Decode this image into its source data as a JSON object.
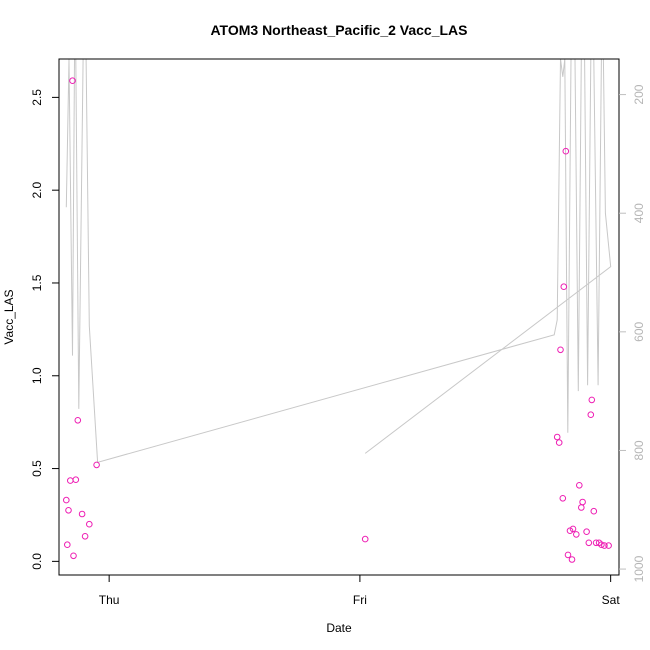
{
  "chart_data": {
    "type": "scatter",
    "title": "ATOM3 Northeast_Pacific_2 Vacc_LAS",
    "xlabel": "Date",
    "ylabel": "Vacc_LAS",
    "x_ticks": [
      {
        "label": "Thu",
        "value": 0
      },
      {
        "label": "Fri",
        "value": 1
      },
      {
        "label": "Sat",
        "value": 2
      }
    ],
    "xlim": [
      -0.2,
      2.0333
    ],
    "ylim": [
      -0.0735,
      2.7068
    ],
    "y_ticks": [
      0.0,
      0.5,
      1.0,
      1.5,
      2.0,
      2.5
    ],
    "y_tick_labels": [
      "0.0",
      "0.5",
      "1.0",
      "1.5",
      "2.0",
      "2.5"
    ],
    "secondary_axis": {
      "ylim_reversed": [
        1010,
        140
      ],
      "ticks": [
        200,
        400,
        600,
        800,
        1000
      ],
      "tick_labels": [
        "200",
        "400",
        "600",
        "800",
        "1000"
      ],
      "color": "#bebebe"
    },
    "series": [
      {
        "kind": "points",
        "color": "#ee1fb4",
        "points": [
          {
            "x": -0.171,
            "y": 0.33
          },
          {
            "x": -0.167,
            "y": 0.09
          },
          {
            "x": -0.162,
            "y": 0.275
          },
          {
            "x": -0.155,
            "y": 0.435
          },
          {
            "x": -0.146,
            "y": 2.59
          },
          {
            "x": -0.142,
            "y": 0.03
          },
          {
            "x": -0.133,
            "y": 0.44
          },
          {
            "x": -0.125,
            "y": 0.76
          },
          {
            "x": -0.108,
            "y": 0.255
          },
          {
            "x": -0.096,
            "y": 0.135
          },
          {
            "x": -0.079,
            "y": 0.2
          },
          {
            "x": -0.05,
            "y": 0.52
          },
          {
            "x": 1.021,
            "y": 0.12
          },
          {
            "x": 1.787,
            "y": 0.67
          },
          {
            "x": 1.795,
            "y": 0.64
          },
          {
            "x": 1.8,
            "y": 1.14
          },
          {
            "x": 1.809,
            "y": 0.34
          },
          {
            "x": 1.813,
            "y": 1.48
          },
          {
            "x": 1.821,
            "y": 2.21
          },
          {
            "x": 1.83,
            "y": 0.035
          },
          {
            "x": 1.838,
            "y": 0.165
          },
          {
            "x": 1.846,
            "y": 0.01
          },
          {
            "x": 1.85,
            "y": 0.175
          },
          {
            "x": 1.863,
            "y": 0.145
          },
          {
            "x": 1.875,
            "y": 0.41
          },
          {
            "x": 1.883,
            "y": 0.29
          },
          {
            "x": 1.888,
            "y": 0.32
          },
          {
            "x": 1.904,
            "y": 0.16
          },
          {
            "x": 1.913,
            "y": 0.1
          },
          {
            "x": 1.921,
            "y": 0.79
          },
          {
            "x": 1.925,
            "y": 0.87
          },
          {
            "x": 1.933,
            "y": 0.27
          },
          {
            "x": 1.942,
            "y": 0.1
          },
          {
            "x": 1.954,
            "y": 0.1
          },
          {
            "x": 1.963,
            "y": 0.09
          },
          {
            "x": 1.975,
            "y": 0.085
          },
          {
            "x": 1.992,
            "y": 0.085
          }
        ]
      },
      {
        "kind": "line",
        "axis": "secondary",
        "color": "#c8c8c8",
        "points": [
          {
            "x": -0.171,
            "y": 390
          },
          {
            "x": -0.16,
            "y": 10
          },
          {
            "x": -0.146,
            "y": 640
          },
          {
            "x": -0.138,
            "y": 20
          },
          {
            "x": -0.133,
            "y": 10
          },
          {
            "x": -0.121,
            "y": 730
          },
          {
            "x": -0.104,
            "y": 10
          },
          {
            "x": -0.092,
            "y": 10
          },
          {
            "x": -0.079,
            "y": 590
          },
          {
            "x": -0.046,
            "y": 820
          },
          {
            "x": 1.775,
            "y": 605
          },
          {
            "x": 1.787,
            "y": 580
          },
          {
            "x": 1.8,
            "y": 10
          },
          {
            "x": 1.809,
            "y": 170
          },
          {
            "x": 1.817,
            "y": 10
          },
          {
            "x": 1.829,
            "y": 770
          },
          {
            "x": 1.842,
            "y": 10
          },
          {
            "x": 1.858,
            "y": 10
          },
          {
            "x": 1.871,
            "y": 700
          },
          {
            "x": 1.883,
            "y": 10
          },
          {
            "x": 1.896,
            "y": 10
          },
          {
            "x": 1.908,
            "y": 690
          },
          {
            "x": 1.921,
            "y": 10
          },
          {
            "x": 1.933,
            "y": 10
          },
          {
            "x": 1.95,
            "y": 690
          },
          {
            "x": 1.963,
            "y": 10
          },
          {
            "x": 1.971,
            "y": 10
          },
          {
            "x": 1.979,
            "y": 400
          },
          {
            "x": 2.0,
            "y": 490
          },
          {
            "x": 1.021,
            "y": 805
          }
        ]
      }
    ]
  }
}
